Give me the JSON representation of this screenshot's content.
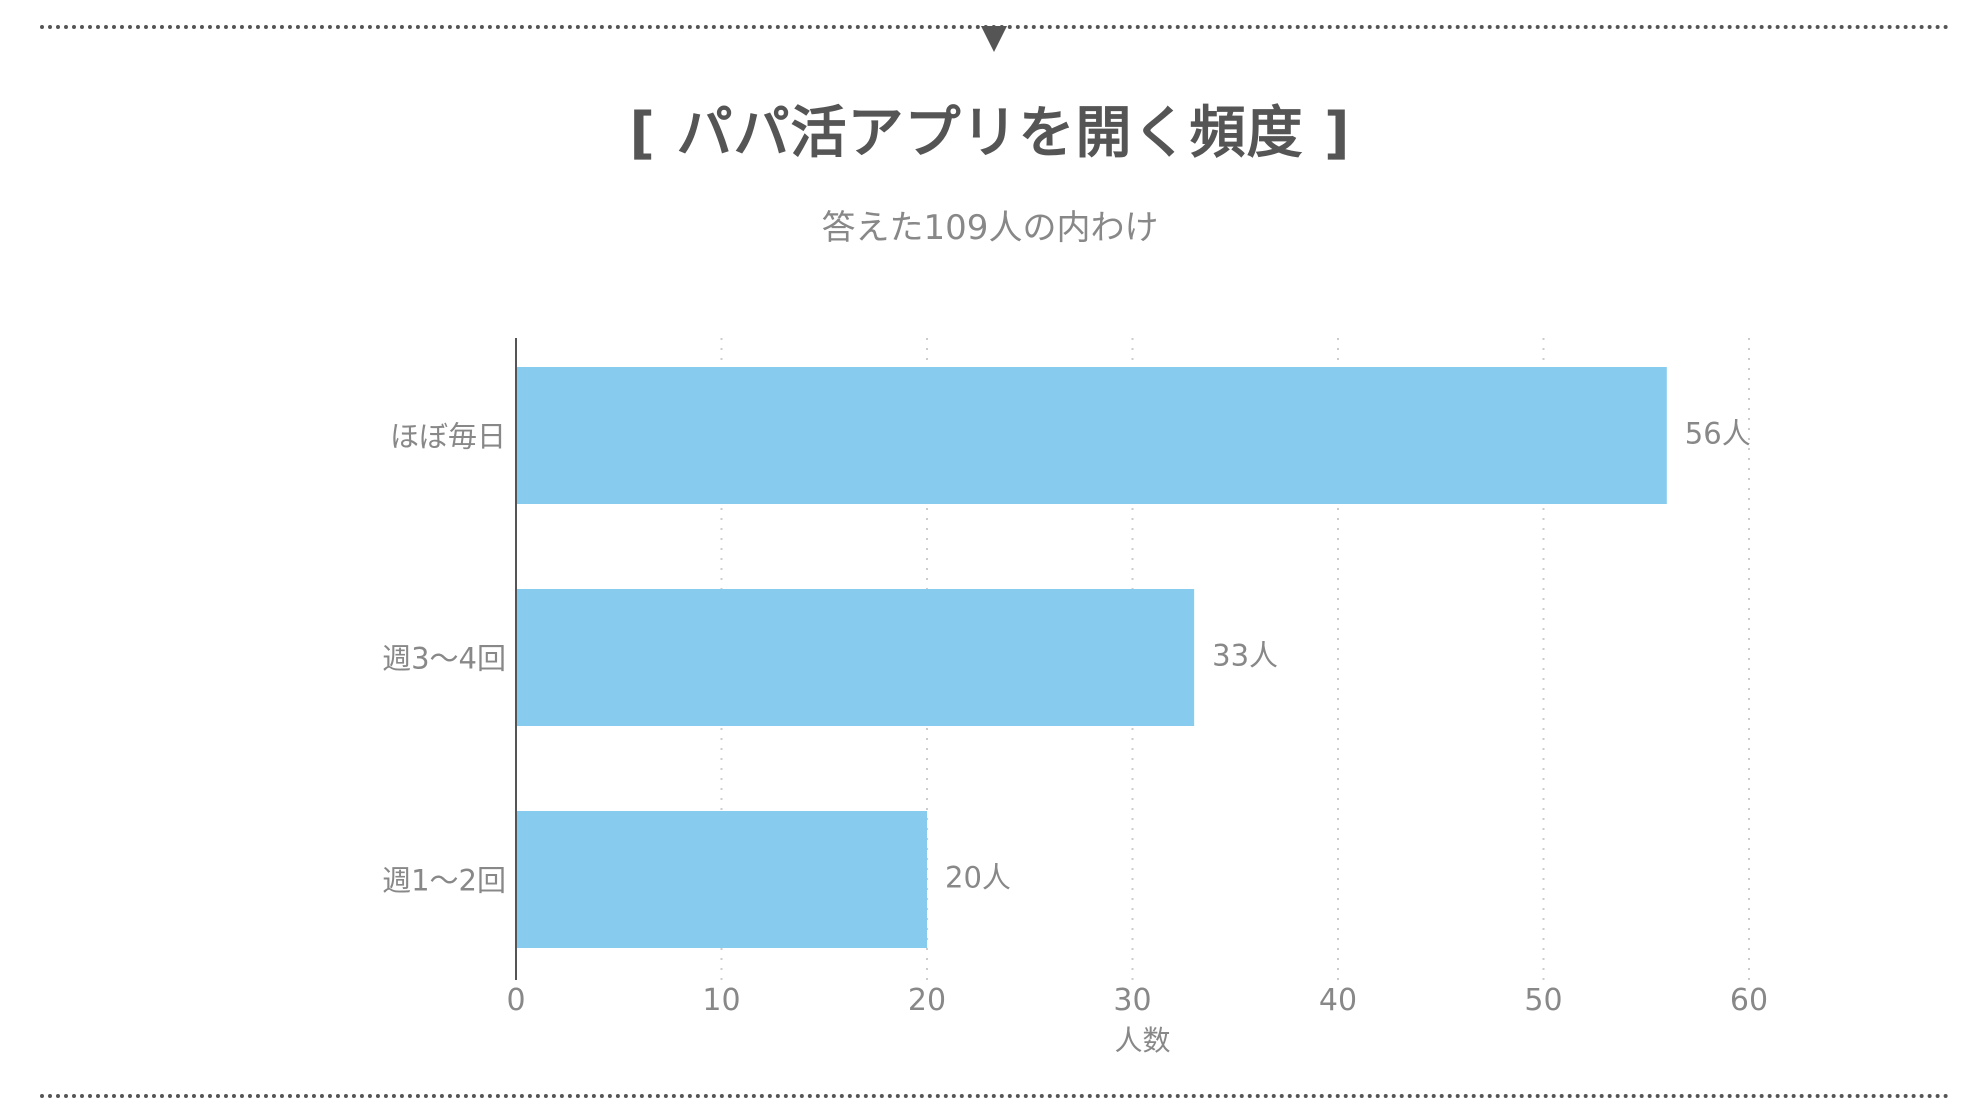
{
  "header": {
    "title": "[ パパ活アプリを開く頻度 ]",
    "subtitle": "答えた109人の内わけ"
  },
  "chart_data": {
    "type": "bar",
    "orientation": "horizontal",
    "title": "[ パパ活アプリを開く頻度 ]",
    "subtitle": "答えた109人の内わけ",
    "categories": [
      "ほぼ毎日",
      "週3〜4回",
      "週1〜2回"
    ],
    "values": [
      56,
      33,
      20
    ],
    "value_labels": [
      "56人",
      "33人",
      "20人"
    ],
    "xlabel": "人数",
    "ylabel": "",
    "xlim": [
      0,
      60
    ],
    "xticks": [
      0,
      10,
      20,
      30,
      40,
      50,
      60
    ],
    "grid": "vertical dotted",
    "legend": "none",
    "bar_color": "#87CCEE",
    "axis_color": "#555555",
    "text_color": "#888888"
  }
}
